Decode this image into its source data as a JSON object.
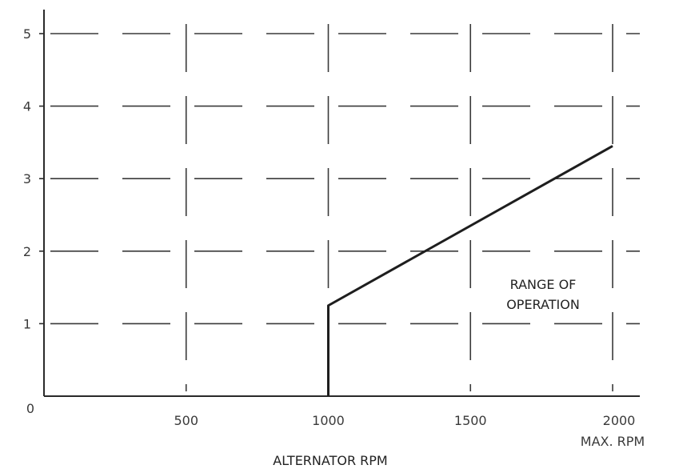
{
  "chart_data": {
    "type": "line",
    "title": "",
    "xlabel": "ALTERNATOR RPM",
    "ylabel": "",
    "xlim": [
      0,
      2100
    ],
    "ylim": [
      0,
      5.5
    ],
    "x_ticks": [
      0,
      500,
      1000,
      1500,
      2000
    ],
    "x_tick_labels": [
      "",
      "500",
      "1000",
      "1500",
      "2000"
    ],
    "x_tick_sublabel": "MAX. RPM",
    "y_ticks": [
      0,
      1,
      2,
      3,
      4,
      5
    ],
    "y_tick_labels": [
      "0",
      "1",
      "2",
      "3",
      "4",
      "5"
    ],
    "origin_label": "0",
    "grid": true,
    "annotation": [
      "RANGE OF",
      "OPERATION"
    ],
    "series": [
      {
        "x": [
          1000,
          1000,
          2000
        ],
        "y": [
          0,
          1.25,
          3.45
        ]
      }
    ]
  }
}
